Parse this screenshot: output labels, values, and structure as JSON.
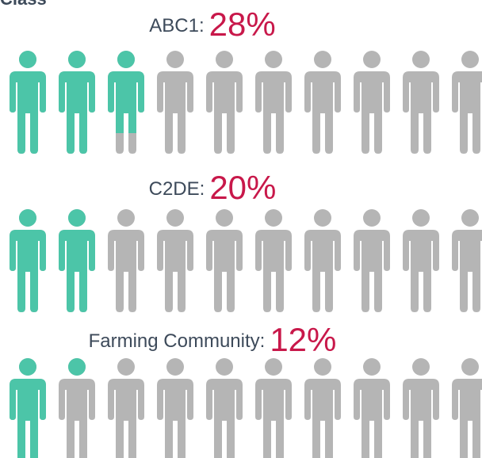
{
  "chart_data": {
    "type": "pictogram",
    "title": "Class",
    "categories": [
      "ABC1:",
      "C2DE:",
      "Farming Community:"
    ],
    "values": [
      28,
      20,
      12
    ],
    "value_labels": [
      "28%",
      "20%",
      "12%"
    ],
    "xlim": [
      0,
      100
    ],
    "color": "#4cc5a8",
    "empty_color": "#b5b5b5",
    "label_color": "#c8184a"
  }
}
